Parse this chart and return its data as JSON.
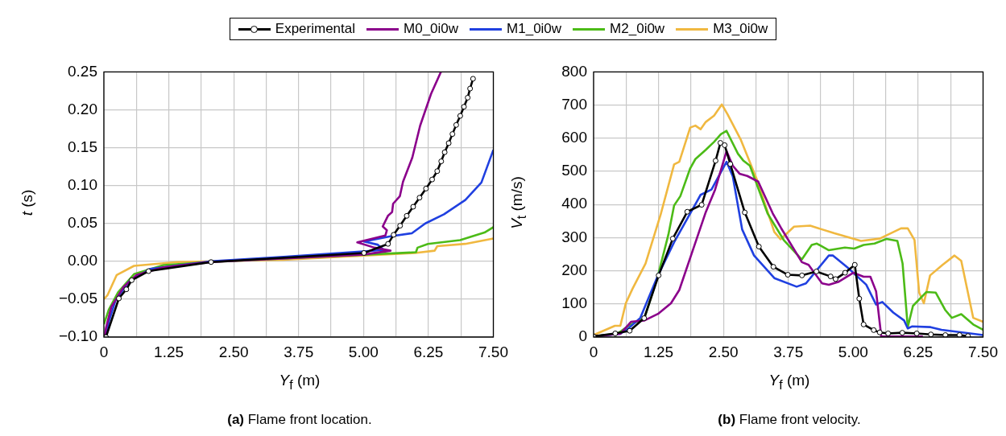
{
  "chart_data": [
    {
      "type": "line",
      "title": "(a) Flame front location.",
      "xlabel": "Y$_{f}$ (m)",
      "ylabel": "t (s)",
      "xlim": [
        0,
        7.5
      ],
      "ylim": [
        -0.1,
        0.25
      ],
      "xticks": [
        0,
        {
          "value": 0.625,
          "label": null
        },
        {
          "value": 1.25,
          "label": "1.25"
        },
        {
          "value": 1.875,
          "label": null
        },
        {
          "value": 2.5,
          "label": "2.50"
        },
        {
          "value": 3.125,
          "label": null
        },
        {
          "value": 3.75,
          "label": "3.75"
        },
        {
          "value": 4.375,
          "label": null
        },
        {
          "value": 5,
          "label": "5.00"
        },
        {
          "value": 5.625,
          "label": null
        },
        {
          "value": 6.25,
          "label": "6.25"
        },
        {
          "value": 6.875,
          "label": null
        },
        {
          "value": 7.5,
          "label": "7.50"
        }
      ],
      "yticks": [
        {
          "value": -0.1,
          "label": "−0.10"
        },
        {
          "value": -0.05,
          "label": "−0.05"
        },
        {
          "value": 0,
          "label": "0.00"
        },
        {
          "value": 0.05,
          "label": "0.05"
        },
        {
          "value": 0.1,
          "label": "0.10"
        },
        {
          "value": 0.15,
          "label": "0.15"
        },
        {
          "value": 0.2,
          "label": "0.20"
        },
        {
          "value": 0.25,
          "label": "0.25"
        }
      ],
      "grid": true,
      "legend": "top",
      "line_style": "solid",
      "series": [
        {
          "name": "Experimental",
          "color": "#000000",
          "marker": "circle",
          "x": [
            0.04,
            0.288,
            0.432,
            0.535,
            0.86,
            2.064,
            5.009,
            5.472,
            5.58,
            5.704,
            5.832,
            5.956,
            6.079,
            6.203,
            6.321,
            6.419,
            6.496,
            6.563,
            6.64,
            6.712,
            6.785,
            6.862,
            6.934,
            7.006,
            7.052,
            7.109
          ],
          "values": [
            -0.1,
            -0.049,
            -0.037,
            -0.025,
            -0.013,
            -0.001,
            0.011,
            0.023,
            0.035,
            0.047,
            0.06,
            0.072,
            0.084,
            0.096,
            0.108,
            0.119,
            0.132,
            0.144,
            0.156,
            0.168,
            0.18,
            0.192,
            0.204,
            0.216,
            0.228,
            0.241
          ]
        },
        {
          "name": "M0_0i0w",
          "color": "#8b008b",
          "marker": "none",
          "x": [
            0.015,
            0.04,
            0.144,
            0.376,
            0.633,
            1.148,
            2.06,
            5.01,
            5.52,
            5.21,
            4.88,
            5.42,
            5.45,
            5.37,
            5.47,
            5.55,
            5.57,
            5.7,
            5.76,
            5.94,
            6.09,
            6.3,
            6.49
          ],
          "values": [
            -0.1,
            -0.088,
            -0.06,
            -0.034,
            -0.018,
            -0.008,
            -0.001,
            0.009,
            0.014,
            0.018,
            0.025,
            0.034,
            0.041,
            0.046,
            0.06,
            0.065,
            0.076,
            0.086,
            0.105,
            0.137,
            0.179,
            0.221,
            0.25
          ]
        },
        {
          "name": "M1_0i0w",
          "color": "#2040e0",
          "marker": "none",
          "x": [
            0.04,
            0.093,
            0.221,
            0.479,
            0.89,
            2.06,
            3.46,
            5.39,
            5.27,
            5.01,
            5.52,
            5.93,
            6.19,
            6.55,
            6.96,
            7.27,
            7.5
          ],
          "values": [
            -0.1,
            -0.08,
            -0.052,
            -0.027,
            -0.01,
            0,
            0.006,
            0.015,
            0.022,
            0.026,
            0.033,
            0.037,
            0.05,
            0.062,
            0.081,
            0.104,
            0.147
          ]
        },
        {
          "name": "M2_0i0w",
          "color": "#4cbb17",
          "marker": "none",
          "x": [
            0,
            0.093,
            0.273,
            0.58,
            1.15,
            2.06,
            6.01,
            6.04,
            6.24,
            6.86,
            7.33,
            7.5
          ],
          "values": [
            -0.083,
            -0.064,
            -0.041,
            -0.017,
            -0.005,
            -0.001,
            0.012,
            0.018,
            0.023,
            0.028,
            0.038,
            0.045
          ]
        },
        {
          "name": "M3_0i0w",
          "color": "#f0b840",
          "marker": "none",
          "x": [
            0,
            0.067,
            0.247,
            0.58,
            1.41,
            3.46,
            5.99,
            6.37,
            6.42,
            6.96,
            7.5
          ],
          "values": [
            -0.05,
            -0.045,
            -0.018,
            -0.006,
            -0.001,
            0.002,
            0.011,
            0.014,
            0.02,
            0.023,
            0.03
          ]
        }
      ]
    },
    {
      "type": "line",
      "title": "(b) Flame front velocity.",
      "xlabel": "Y$_{f}$ (m)",
      "ylabel": "V$_{t}$ (m/s)",
      "xlim": [
        0,
        7.5
      ],
      "ylim": [
        0,
        800
      ],
      "xticks": [
        0,
        {
          "value": 0.625,
          "label": null
        },
        {
          "value": 1.25,
          "label": "1.25"
        },
        {
          "value": 1.875,
          "label": null
        },
        {
          "value": 2.5,
          "label": "2.50"
        },
        {
          "value": 3.125,
          "label": null
        },
        {
          "value": 3.75,
          "label": "3.75"
        },
        {
          "value": 4.375,
          "label": null
        },
        {
          "value": 5,
          "label": "5.00"
        },
        {
          "value": 5.625,
          "label": null
        },
        {
          "value": 6.25,
          "label": "6.25"
        },
        {
          "value": 6.875,
          "label": null
        },
        {
          "value": 7.5,
          "label": "7.50"
        }
      ],
      "yticks": [
        0,
        100,
        200,
        300,
        400,
        500,
        600,
        700,
        800
      ],
      "grid": true,
      "line_style": "solid",
      "series": [
        {
          "color": "#000000",
          "marker": "circle",
          "x": [
            0,
            0.417,
            0.695,
            0.974,
            1.252,
            1.525,
            1.803,
            2.081,
            2.349,
            2.442,
            2.524,
            2.632,
            2.911,
            3.183,
            3.462,
            3.74,
            4.013,
            4.291,
            4.564,
            4.66,
            4.843,
            5.03,
            5.116,
            5.2,
            5.394,
            5.51,
            5.672,
            5.945,
            6.223,
            6.496,
            6.774,
            7.047,
            7.21
          ],
          "values": [
            2,
            11,
            19,
            57,
            186,
            297,
            378,
            399,
            532,
            586,
            579,
            522,
            376,
            273,
            212,
            188,
            186,
            198,
            183,
            175,
            194,
            218,
            116,
            38,
            21,
            14,
            11,
            13,
            11,
            8,
            6,
            6,
            3
          ]
        },
        {
          "color": "#8b008b",
          "marker": "none",
          "x": [
            0,
            0.515,
            0.72,
            0.98,
            1.24,
            1.49,
            1.65,
            1.91,
            2.16,
            2.34,
            2.56,
            2.68,
            2.81,
            2.96,
            3.17,
            3.45,
            3.61,
            4.01,
            4.14,
            4.4,
            4.53,
            4.71,
            5,
            5.2,
            5.33,
            5.44,
            5.54,
            6.34
          ],
          "values": [
            2,
            10,
            46,
            50,
            70,
            102,
            142,
            262,
            377,
            445,
            561,
            517,
            493,
            486,
            469,
            373,
            329,
            226,
            218,
            162,
            158,
            166,
            194,
            182,
            182,
            138,
            2,
            2
          ]
        },
        {
          "color": "#2040e0",
          "marker": "none",
          "x": [
            0,
            0.515,
            0.67,
            0.9,
            1.08,
            1.24,
            1.55,
            1.96,
            2.06,
            2.27,
            2.56,
            2.68,
            2.86,
            3.09,
            3.48,
            3.91,
            4.09,
            4.53,
            4.61,
            4.89,
            5.25,
            5.44,
            5.56,
            5.77,
            5.98,
            6.05,
            6.13,
            6.49,
            6.7,
            7.5
          ],
          "values": [
            2,
            10,
            26,
            58,
            126,
            186,
            286,
            401,
            429,
            445,
            529,
            485,
            325,
            246,
            178,
            152,
            162,
            246,
            246,
            210,
            158,
            98,
            106,
            74,
            50,
            26,
            32,
            30,
            22,
            6
          ]
        },
        {
          "color": "#4cbb17",
          "marker": "none",
          "x": [
            0,
            0.46,
            0.67,
            0.98,
            1.24,
            1.44,
            1.55,
            1.67,
            1.86,
            1.96,
            2.16,
            2.32,
            2.45,
            2.56,
            2.78,
            2.88,
            3.01,
            3.35,
            3.66,
            4.01,
            4.2,
            4.3,
            4.53,
            4.84,
            5.02,
            5.2,
            5.41,
            5.64,
            5.85,
            5.95,
            6.05,
            6.15,
            6.41,
            6.59,
            6.77,
            6.9,
            7.08,
            7.31,
            7.5
          ],
          "values": [
            2,
            10,
            34,
            58,
            186,
            309,
            397,
            425,
            509,
            537,
            565,
            589,
            612,
            622,
            553,
            533,
            517,
            373,
            293,
            234,
            278,
            282,
            262,
            270,
            267,
            278,
            282,
            296,
            290,
            222,
            30,
            94,
            136,
            134,
            82,
            58,
            69,
            38,
            22
          ]
        },
        {
          "color": "#f0b840",
          "marker": "none",
          "x": [
            0,
            0.41,
            0.515,
            0.62,
            0.75,
            1,
            1.29,
            1.55,
            1.65,
            1.86,
            1.96,
            2.06,
            2.16,
            2.32,
            2.47,
            2.58,
            2.83,
            3.14,
            3.48,
            3.6,
            3.86,
            4.17,
            4.64,
            5.15,
            5.51,
            5.92,
            6.05,
            6.18,
            6.27,
            6.36,
            6.48,
            6.72,
            6.95,
            7.08,
            7.31,
            7.5
          ],
          "values": [
            6,
            34,
            34,
            102,
            146,
            222,
            369,
            521,
            529,
            632,
            638,
            627,
            649,
            668,
            702,
            672,
            597,
            477,
            317,
            295,
            333,
            336,
            313,
            290,
            297,
            328,
            328,
            293,
            134,
            102,
            186,
            218,
            246,
            230,
            58,
            46
          ]
        }
      ]
    }
  ]
}
